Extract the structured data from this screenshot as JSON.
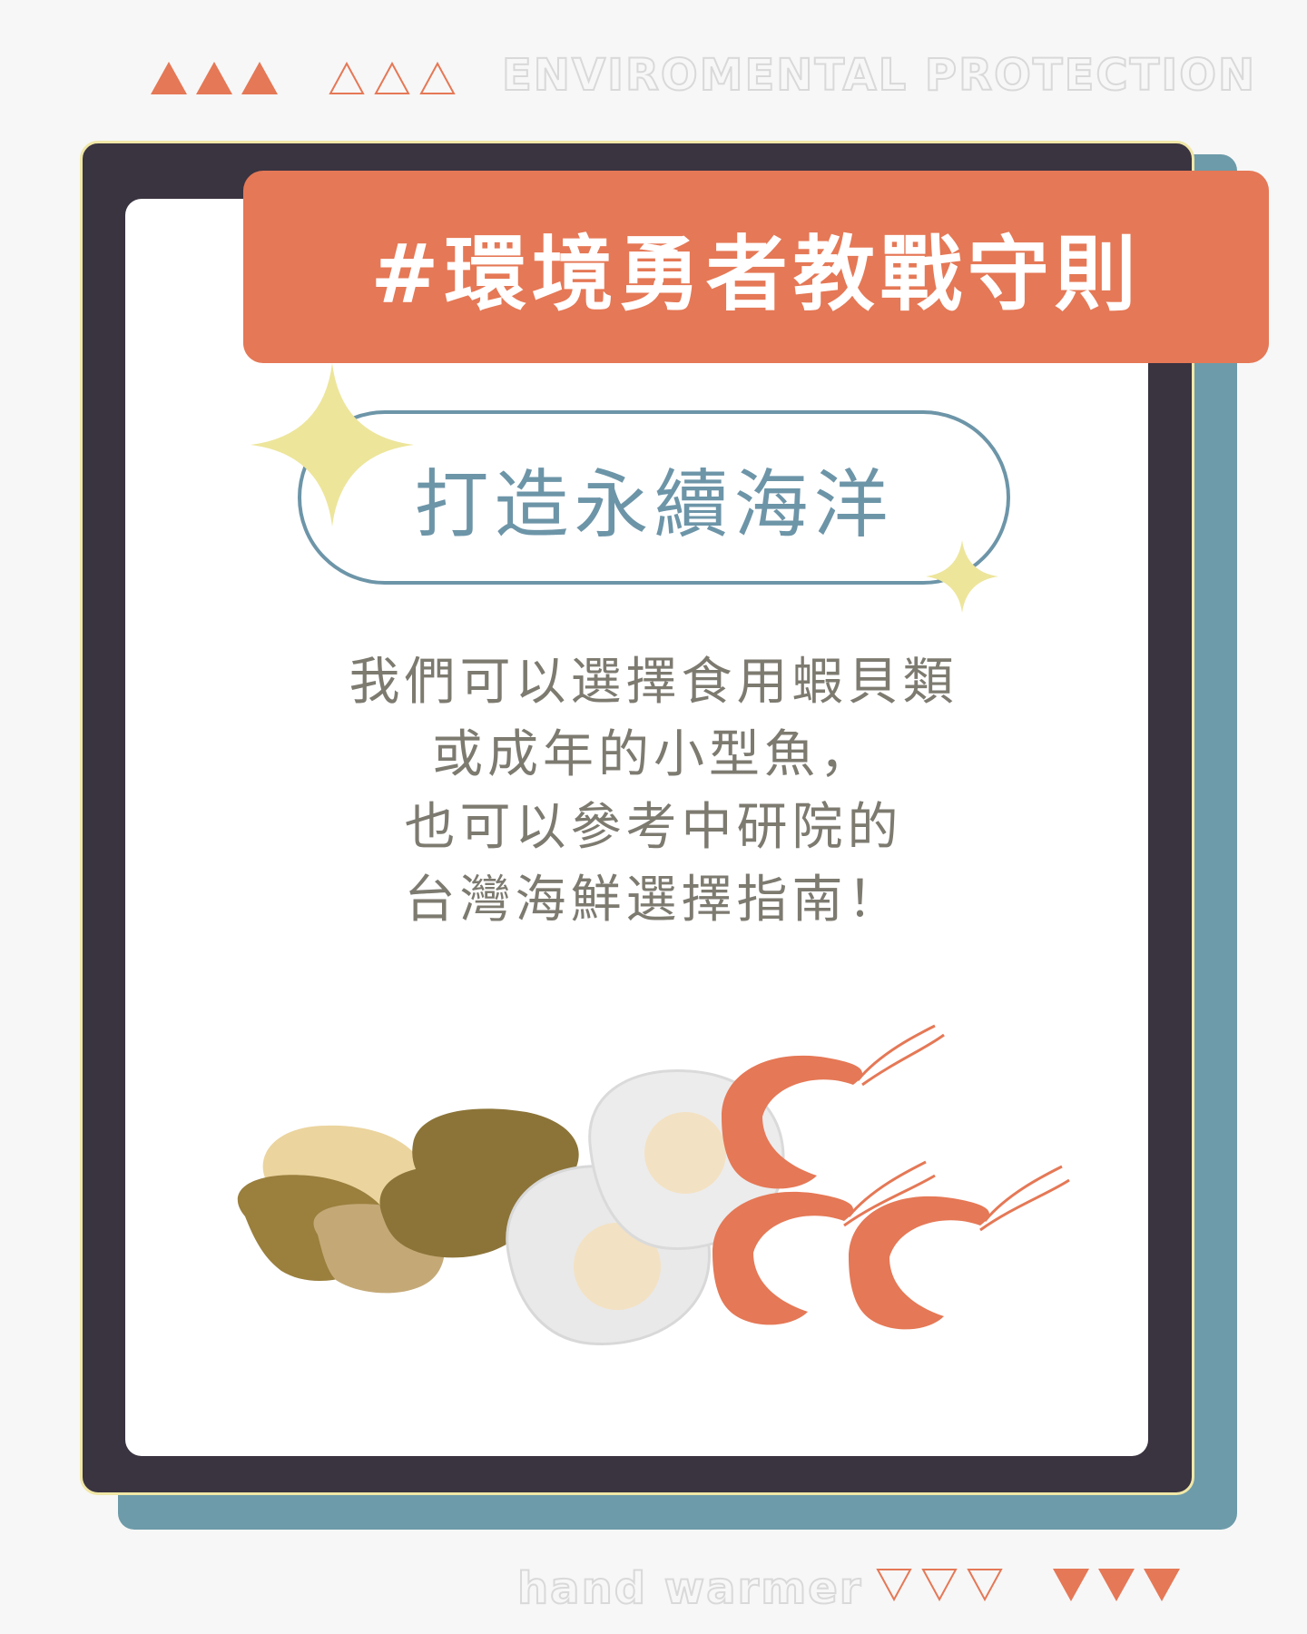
{
  "header": {
    "headline": "ENVIROMENTAL PROTECTION",
    "filled_triangle_color": "#e57856",
    "outline_triangle_color": "#e57856"
  },
  "card": {
    "title": "#環境勇者教戰守則",
    "subtitle": "打造永續海洋",
    "body_lines": [
      "我們可以選擇食用蝦貝類",
      "或成年的小型魚，",
      "也可以參考中研院的",
      "台灣海鮮選擇指南！"
    ],
    "colors": {
      "title_bg": "#e57856",
      "frame": "#3a3340",
      "shadow": "#6d9ba9",
      "accent_star": "#ede59a",
      "subtitle": "#6d95a8",
      "body_text": "#7d7a70"
    }
  },
  "illustration": {
    "items": [
      "clam-icon",
      "scallop-icon",
      "shrimp-icon"
    ]
  },
  "footer": {
    "tagline": "hand warmer"
  }
}
